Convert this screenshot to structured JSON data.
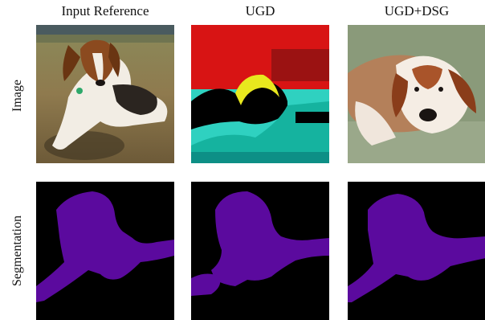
{
  "columns": [
    "Input Reference",
    "UGD",
    "UGD+DSG"
  ],
  "rows": [
    "Image",
    "Segmentation"
  ],
  "panels": {
    "input_image": "dog lying on grass",
    "ugd_image": "noisy red-yellow-cyan image",
    "dsg_image": "dog swimming in water",
    "segmentation_color": "#5b0a9e",
    "segmentation_background": "#000000"
  }
}
